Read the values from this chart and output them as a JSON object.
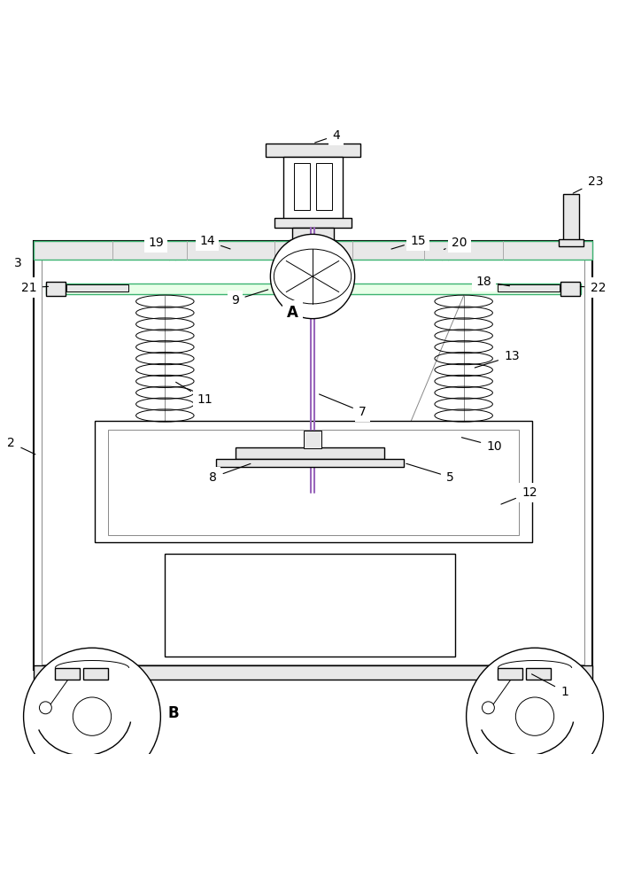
{
  "bg_color": "#ffffff",
  "lc": "#000000",
  "gray_fill": "#d0d0d0",
  "light_gray": "#e8e8e8",
  "green": "#3cb371",
  "purple": "#9966bb",
  "fig_width": 7.07,
  "fig_height": 10.0,
  "dpi": 100
}
